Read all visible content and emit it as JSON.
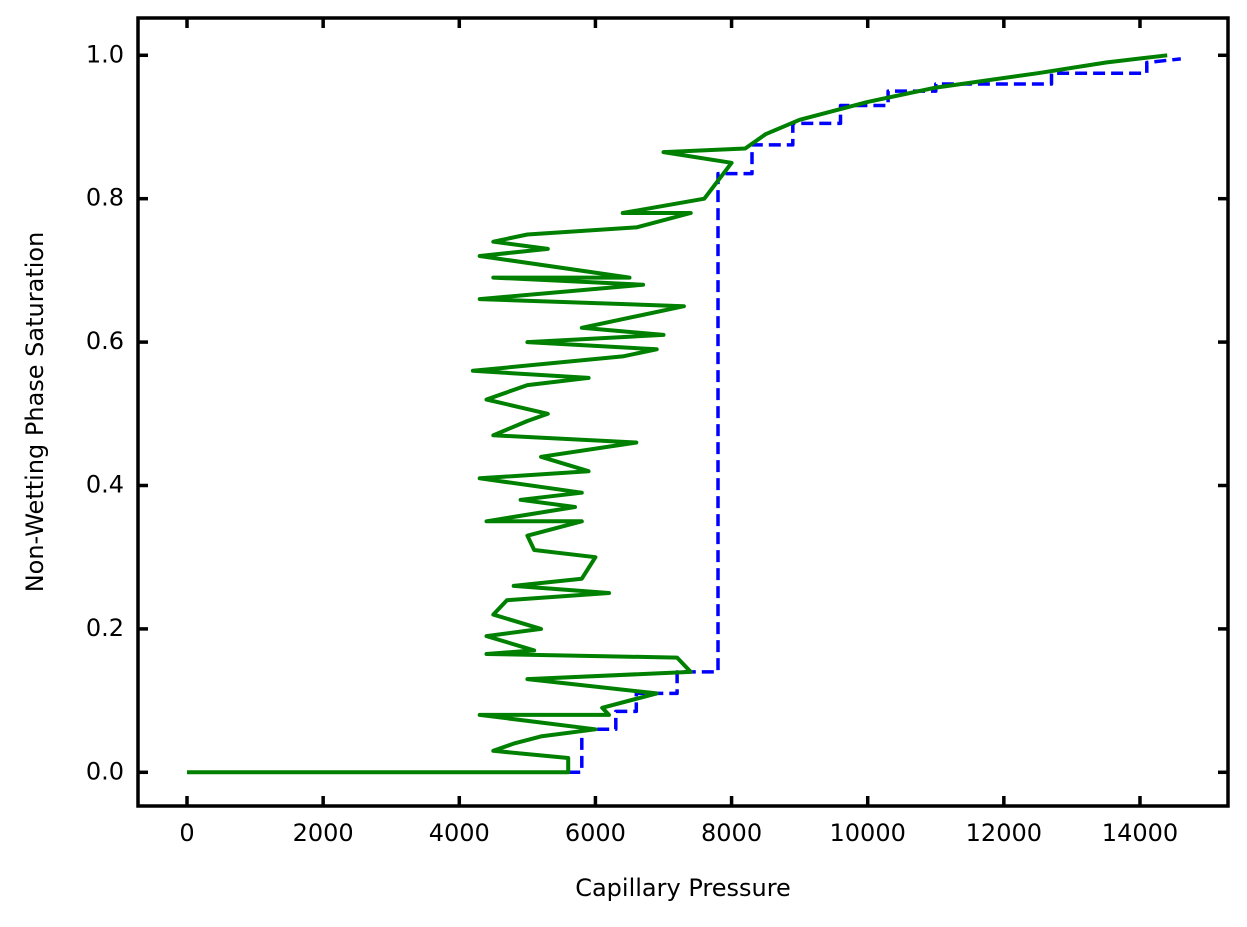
{
  "chart_data": {
    "type": "line",
    "xlabel": "Capillary Pressure",
    "ylabel": "Non-Wetting Phase Saturation",
    "xlim": [
      -720,
      15293
    ],
    "ylim": [
      -0.047,
      1.052
    ],
    "xticks": [
      0,
      2000,
      4000,
      6000,
      8000,
      10000,
      12000,
      14000
    ],
    "yticks": [
      {
        "value": 0,
        "label": "0.0"
      },
      0.2,
      0.4,
      0.6,
      0.8,
      {
        "value": 1,
        "label": "1.0"
      }
    ],
    "series": [
      {
        "color": "#0000ff",
        "dashed": true,
        "x": [
          5600,
          5800,
          5800,
          6300,
          6300,
          6600,
          6600,
          7200,
          7200,
          7800,
          7800,
          8300,
          8300,
          8900,
          8900,
          9600,
          9600,
          10300,
          10300,
          11000,
          11000,
          12700,
          12700,
          14100,
          14100,
          14600
        ],
        "values": [
          0,
          0,
          0.06,
          0.06,
          0.085,
          0.085,
          0.11,
          0.11,
          0.14,
          0.14,
          0.835,
          0.835,
          0.875,
          0.875,
          0.905,
          0.905,
          0.93,
          0.93,
          0.95,
          0.95,
          0.96,
          0.96,
          0.975,
          0.975,
          0.99,
          0.995
        ]
      },
      {
        "color": "#008000",
        "dashed": false,
        "x": [
          0,
          5600,
          5600,
          4500,
          4800,
          5200,
          6000,
          4300,
          6200,
          6100,
          6900,
          5000,
          7400,
          7200,
          4400,
          5100,
          4400,
          5200,
          4500,
          4700,
          6200,
          4800,
          5800,
          6000,
          5100,
          5000,
          5800,
          4400,
          5700,
          4900,
          5800,
          4300,
          5900,
          5200,
          6600,
          4500,
          5000,
          5300,
          4400,
          5000,
          5900,
          4200,
          6400,
          6900,
          5000,
          7000,
          5800,
          7300,
          4300,
          6700,
          4500,
          6500,
          4300,
          5300,
          4500,
          5000,
          6600,
          7400,
          6400,
          7600,
          8000,
          7000,
          8200,
          8500,
          9000,
          10000,
          11000,
          12500,
          13500,
          14400
        ],
        "values": [
          0,
          0,
          0.02,
          0.03,
          0.04,
          0.05,
          0.06,
          0.08,
          0.08,
          0.09,
          0.11,
          0.13,
          0.14,
          0.16,
          0.165,
          0.17,
          0.19,
          0.2,
          0.22,
          0.24,
          0.25,
          0.26,
          0.27,
          0.3,
          0.31,
          0.33,
          0.35,
          0.35,
          0.37,
          0.38,
          0.39,
          0.41,
          0.42,
          0.44,
          0.46,
          0.47,
          0.49,
          0.5,
          0.52,
          0.54,
          0.55,
          0.56,
          0.58,
          0.59,
          0.6,
          0.61,
          0.62,
          0.65,
          0.66,
          0.68,
          0.69,
          0.69,
          0.72,
          0.73,
          0.74,
          0.75,
          0.76,
          0.78,
          0.78,
          0.8,
          0.85,
          0.865,
          0.87,
          0.89,
          0.91,
          0.935,
          0.955,
          0.975,
          0.99,
          1.0
        ]
      }
    ]
  }
}
